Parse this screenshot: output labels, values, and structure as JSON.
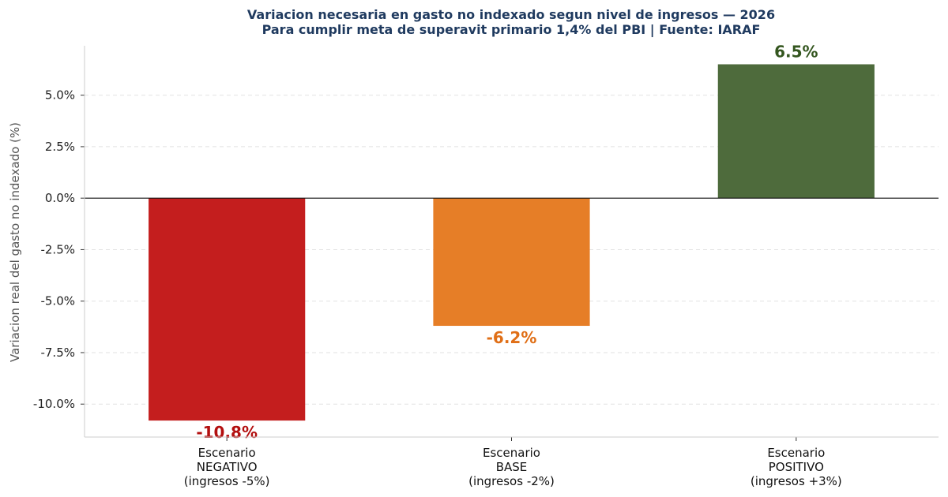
{
  "chart_data": {
    "type": "bar",
    "title": "Variacion necesaria en gasto no indexado segun nivel de ingresos — 2026",
    "subtitle": "Para cumplir meta de superavit primario 1,4% del PBI  |  Fuente: IARAF",
    "xlabel": "",
    "ylabel": "Variacion real del gasto no indexado (%)",
    "ylim": [
      -11.6,
      7.4
    ],
    "yticks": [
      5.0,
      2.5,
      0.0,
      -2.5,
      -5.0,
      -7.5,
      -10.0
    ],
    "ytick_labels": [
      "5.0%",
      "2.5%",
      "0.0%",
      "-2.5%",
      "-5.0%",
      "-7.5%",
      "-10.0%"
    ],
    "grid": true,
    "categories": [
      [
        "Escenario",
        "NEGATIVO",
        "(ingresos -5%)"
      ],
      [
        "Escenario",
        "BASE",
        "(ingresos -2%)"
      ],
      [
        "Escenario",
        "POSITIVO",
        "(ingresos +3%)"
      ]
    ],
    "values": [
      -10.8,
      -6.2,
      6.5
    ],
    "data_labels": [
      "-10.8%",
      "-6.2%",
      "6.5%"
    ],
    "bar_colors": [
      "#c41e1e",
      "#e67e27",
      "#4e6b3c"
    ],
    "label_colors": [
      "#b30f0f",
      "#e06f17",
      "#34561f"
    ]
  }
}
